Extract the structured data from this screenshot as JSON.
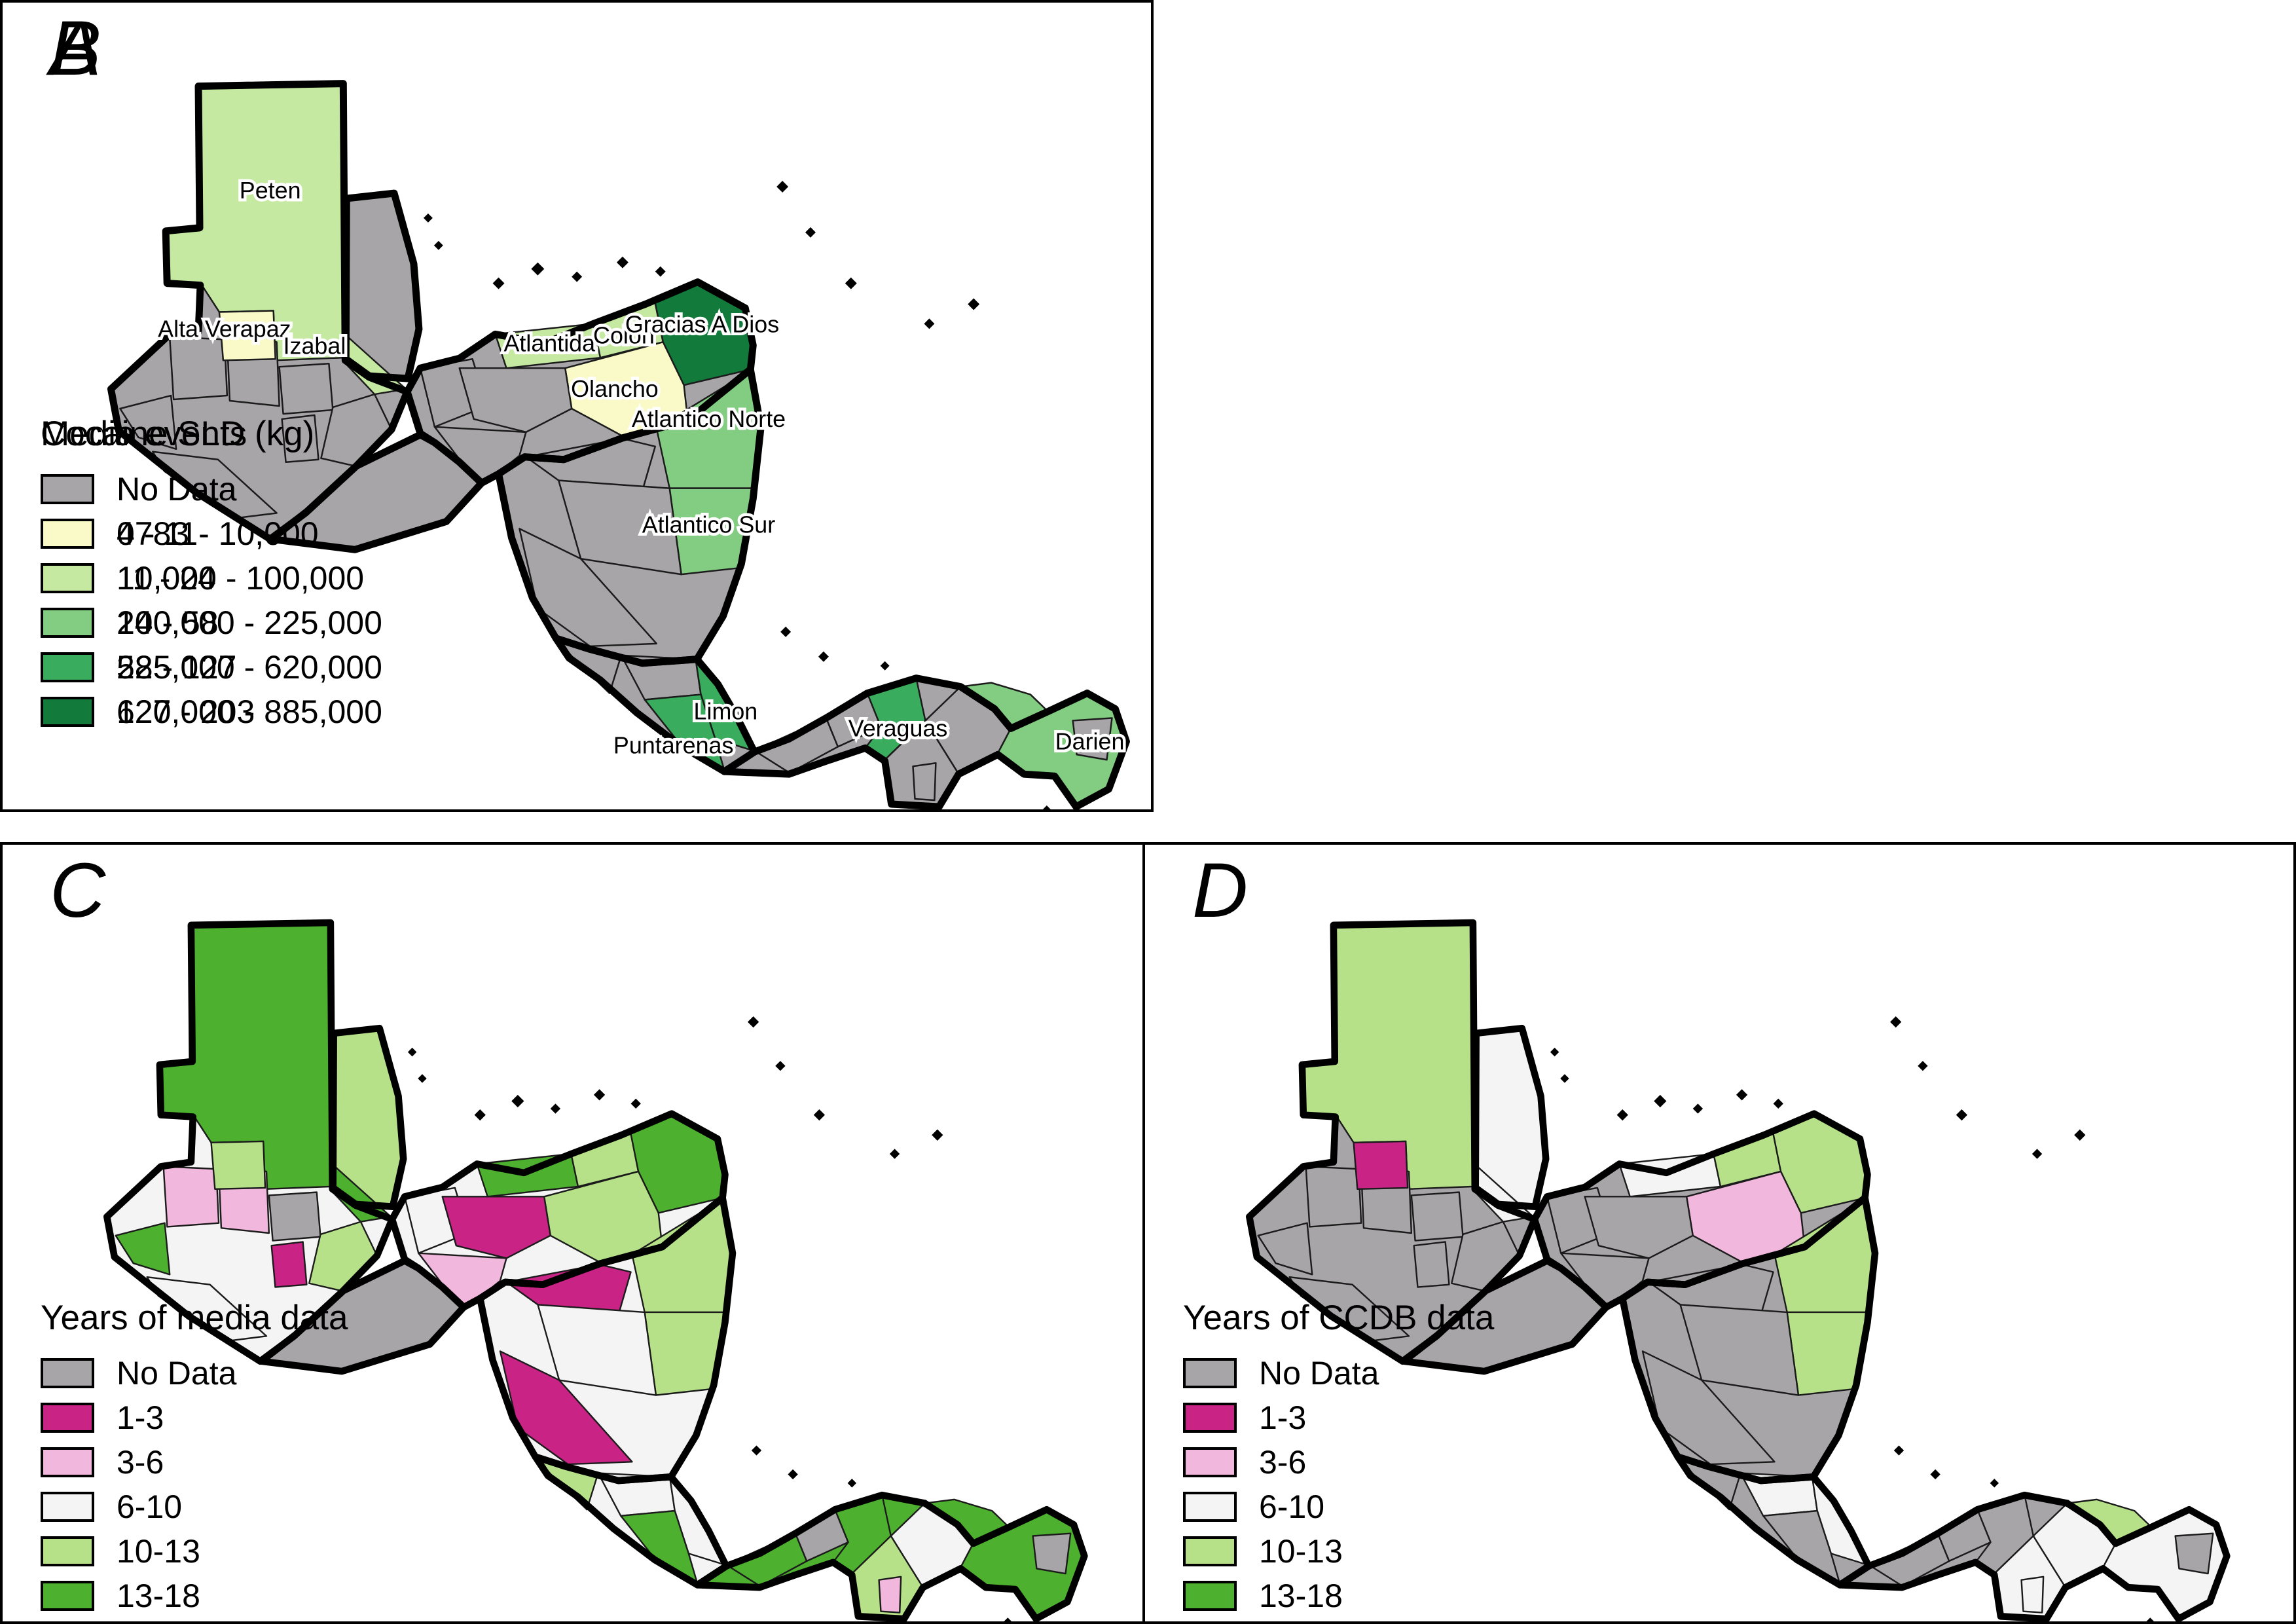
{
  "figure_background": "#FFFFFF",
  "panels": [
    {
      "letter": "A",
      "legend_title": "Media events",
      "legend": [
        {
          "label": "No Data",
          "color": "#A8A5A8"
        },
        {
          "label": "0 - 11",
          "color": "#FCFCA8"
        },
        {
          "label": "11 - 24",
          "color": "#FCCE62"
        },
        {
          "label": "24 - 58",
          "color": "#F98B3B"
        },
        {
          "label": "58 - 127",
          "color": "#EF3A21"
        },
        {
          "label": "127 - 203",
          "color": "#BB0D2B"
        }
      ],
      "map_labels": [],
      "region_fills": {
        "gt": 1,
        "bz": 3,
        "hn": 3,
        "sv": 0,
        "ni": 1,
        "cr": 2,
        "pa": 3,
        "peten": 3,
        "g1": 2,
        "g2": 3,
        "g3": 1,
        "g4": 5,
        "g5": 0,
        "g6": 1,
        "g7": 2,
        "g8": 2,
        "g9": 2,
        "h1": 4,
        "h2": 4,
        "h3": 4,
        "h4": 5,
        "h5": 3,
        "h6": 1,
        "h7": 2,
        "n1": 2,
        "n2": 3,
        "n3": 2,
        "n4": 1,
        "n5": 2,
        "c1": 3,
        "c2": 1,
        "c3": 2,
        "c4": 3,
        "p1": 3,
        "p2": 0,
        "p3": 3,
        "p4": 2,
        "p4b": 1,
        "p5": 4,
        "p6": 4,
        "p7": 3,
        "p8": 0
      }
    },
    {
      "letter": "B",
      "legend_title": "Cocaine SLD (kg)",
      "legend": [
        {
          "label": "No Data",
          "color": "#A8A5A8"
        },
        {
          "label": "4783 - 10,000",
          "color": "#FAFAC8"
        },
        {
          "label": "10,000 - 100,000",
          "color": "#C6E9A2"
        },
        {
          "label": "100,000 - 225,000",
          "color": "#82CD81"
        },
        {
          "label": "225,000 - 620,000",
          "color": "#39AC5D"
        },
        {
          "label": "620,000 - 885,000",
          "color": "#127A3B"
        }
      ],
      "map_labels": [
        "Peten",
        "Alta Verapaz",
        "Izabal",
        "Atlantida",
        "Colon",
        "Gracias A Dios",
        "Olancho",
        "Atlantico Norte",
        "Atlantico Sur",
        "Limon",
        "Puntarenas",
        "Veraguas",
        "Darien"
      ],
      "region_fills": {
        "gt": 0,
        "bz": 0,
        "hn": 0,
        "sv": 0,
        "ni": 0,
        "cr": 0,
        "pa": 0,
        "peten": 2,
        "g1": 0,
        "g2": 0,
        "g3": 0,
        "g4": 0,
        "g5": 0,
        "g6": 0,
        "g7": 0,
        "g8": 1,
        "g9": 2,
        "h1": 0,
        "h2": 2,
        "h3": 2,
        "h4": 5,
        "h5": 1,
        "h6": 0,
        "h7": 0,
        "n1": 0,
        "n2": 3,
        "n3": 3,
        "n4": 0,
        "n5": 0,
        "c1": 0,
        "c2": 0,
        "c3": 4,
        "c4": 4,
        "p1": 0,
        "p2": 0,
        "p3": 4,
        "p4": 0,
        "p4b": 0,
        "p5": 0,
        "p6": 3,
        "p7": 3,
        "p8": 0
      }
    },
    {
      "letter": "C",
      "legend_title": "Years of media data",
      "legend": [
        {
          "label": "No Data",
          "color": "#A8A5A8"
        },
        {
          "label": "1-3",
          "color": "#C92386"
        },
        {
          "label": "3-6",
          "color": "#F2B7DC"
        },
        {
          "label": "6-10",
          "color": "#F5F4F5"
        },
        {
          "label": "10-13",
          "color": "#B6E188"
        },
        {
          "label": "13-18",
          "color": "#4DB02F"
        }
      ],
      "map_labels": [],
      "region_fills": {
        "gt": 3,
        "bz": 4,
        "hn": 3,
        "sv": 0,
        "ni": 3,
        "cr": 3,
        "pa": 5,
        "peten": 5,
        "g1": 2,
        "g2": 5,
        "g3": 2,
        "g4": 1,
        "g5": 0,
        "g6": 4,
        "g7": 3,
        "g8": 4,
        "g9": 5,
        "h1": 3,
        "h2": 5,
        "h3": 4,
        "h4": 5,
        "h5": 4,
        "h6": 1,
        "h7": 2,
        "n1": 1,
        "n2": 4,
        "n3": 4,
        "n4": 3,
        "n5": 1,
        "c1": 4,
        "c2": 3,
        "c3": 3,
        "c4": 5,
        "p1": 5,
        "p2": 0,
        "p3": 5,
        "p4": 4,
        "p4b": 2,
        "p5": 3,
        "p6": 5,
        "p7": 5,
        "p8": 0
      }
    },
    {
      "letter": "D",
      "legend_title": "Years of CCDB data",
      "legend": [
        {
          "label": "No Data",
          "color": "#A8A5A8"
        },
        {
          "label": "1-3",
          "color": "#C92386"
        },
        {
          "label": "3-6",
          "color": "#F2B7DC"
        },
        {
          "label": "6-10",
          "color": "#F5F4F5"
        },
        {
          "label": "10-13",
          "color": "#B6E188"
        },
        {
          "label": "13-18",
          "color": "#4DB02F"
        }
      ],
      "map_labels": [],
      "region_fills": {
        "gt": 0,
        "bz": 3,
        "hn": 0,
        "sv": 0,
        "ni": 0,
        "cr": 0,
        "pa": 0,
        "peten": 4,
        "g1": 0,
        "g2": 0,
        "g3": 0,
        "g4": 0,
        "g5": 0,
        "g6": 0,
        "g7": 0,
        "g8": 1,
        "g9": 3,
        "h1": 0,
        "h2": 3,
        "h3": 4,
        "h4": 4,
        "h5": 2,
        "h6": 0,
        "h7": 0,
        "n1": 0,
        "n2": 4,
        "n3": 4,
        "n4": 0,
        "n5": 0,
        "c1": 0,
        "c2": 3,
        "c3": 3,
        "c4": 0,
        "p1": 0,
        "p2": 0,
        "p3": 0,
        "p4": 3,
        "p4b": 3,
        "p5": 3,
        "p6": 4,
        "p7": 3,
        "p8": 0
      }
    }
  ]
}
